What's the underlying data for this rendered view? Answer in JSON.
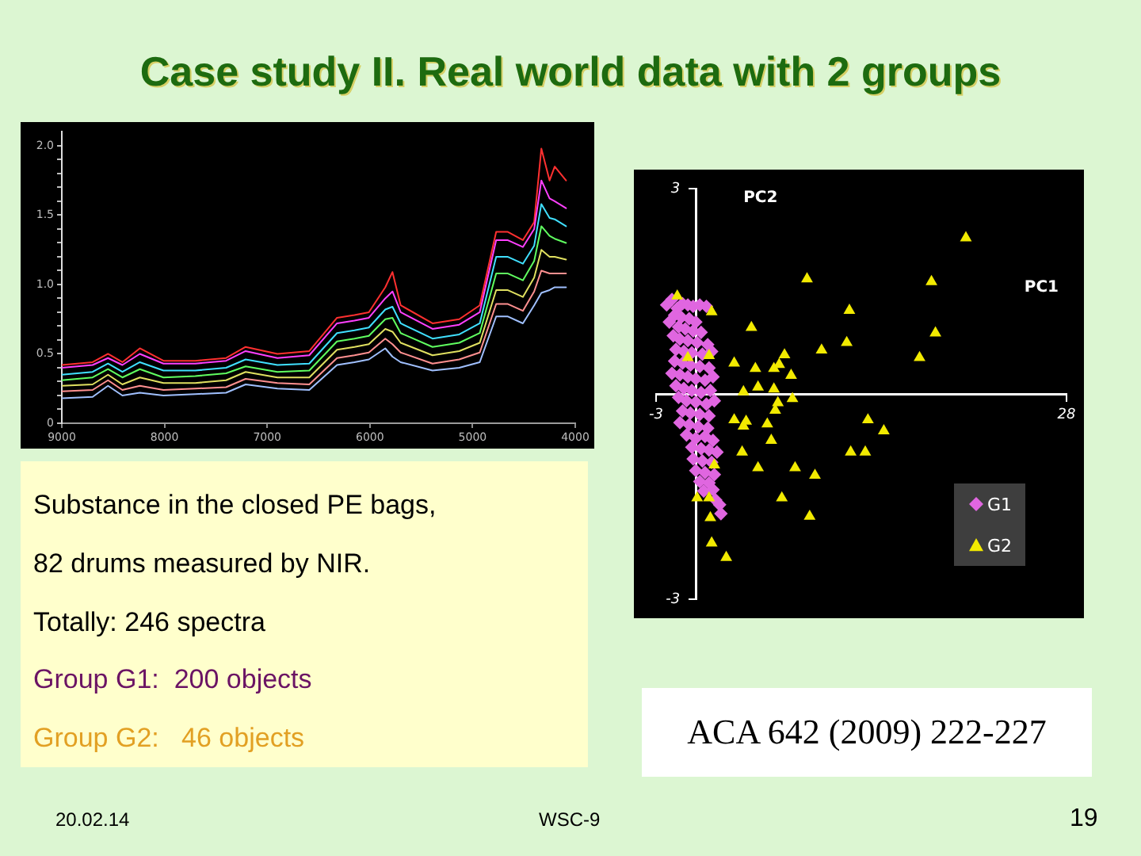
{
  "chart_data": [
    {
      "type": "line",
      "x": [
        9000,
        8700,
        8550,
        8410,
        8240,
        8010,
        7700,
        7400,
        7210,
        6900,
        6590,
        6320,
        6150,
        6010,
        5850,
        5780,
        5700,
        5390,
        5130,
        4930,
        4770,
        4660,
        4510,
        4400,
        4330,
        4250,
        4200,
        4090
      ],
      "series": [
        {
          "color": "#ff3030",
          "values": [
            0.42,
            0.44,
            0.5,
            0.44,
            0.54,
            0.45,
            0.45,
            0.47,
            0.55,
            0.5,
            0.52,
            0.76,
            0.78,
            0.8,
            0.98,
            1.09,
            0.85,
            0.72,
            0.75,
            0.85,
            1.38,
            1.38,
            1.32,
            1.45,
            1.98,
            1.75,
            1.85,
            1.75
          ]
        },
        {
          "color": "#ff40ff",
          "values": [
            0.4,
            0.42,
            0.47,
            0.42,
            0.5,
            0.43,
            0.43,
            0.45,
            0.52,
            0.47,
            0.49,
            0.72,
            0.74,
            0.76,
            0.9,
            0.95,
            0.8,
            0.68,
            0.71,
            0.8,
            1.32,
            1.32,
            1.27,
            1.4,
            1.75,
            1.62,
            1.6,
            1.55
          ]
        },
        {
          "color": "#40e0ff",
          "values": [
            0.35,
            0.37,
            0.43,
            0.37,
            0.44,
            0.38,
            0.38,
            0.4,
            0.46,
            0.42,
            0.43,
            0.65,
            0.67,
            0.69,
            0.82,
            0.84,
            0.72,
            0.61,
            0.64,
            0.72,
            1.2,
            1.2,
            1.15,
            1.28,
            1.58,
            1.48,
            1.47,
            1.42
          ]
        },
        {
          "color": "#60ff60",
          "values": [
            0.31,
            0.33,
            0.39,
            0.33,
            0.39,
            0.33,
            0.34,
            0.36,
            0.41,
            0.37,
            0.38,
            0.59,
            0.61,
            0.63,
            0.75,
            0.76,
            0.65,
            0.55,
            0.58,
            0.65,
            1.08,
            1.08,
            1.03,
            1.17,
            1.42,
            1.35,
            1.33,
            1.3
          ]
        },
        {
          "color": "#e0e060",
          "values": [
            0.27,
            0.28,
            0.35,
            0.28,
            0.33,
            0.29,
            0.29,
            0.31,
            0.37,
            0.33,
            0.33,
            0.53,
            0.55,
            0.57,
            0.68,
            0.66,
            0.58,
            0.49,
            0.52,
            0.58,
            0.96,
            0.96,
            0.91,
            1.05,
            1.25,
            1.2,
            1.2,
            1.18
          ]
        },
        {
          "color": "#ff9090",
          "values": [
            0.23,
            0.24,
            0.31,
            0.24,
            0.27,
            0.24,
            0.25,
            0.26,
            0.32,
            0.29,
            0.28,
            0.47,
            0.49,
            0.51,
            0.61,
            0.57,
            0.51,
            0.43,
            0.46,
            0.51,
            0.86,
            0.86,
            0.81,
            0.95,
            1.1,
            1.08,
            1.08,
            1.08
          ]
        },
        {
          "color": "#a0c0ff",
          "values": [
            0.18,
            0.19,
            0.27,
            0.2,
            0.22,
            0.2,
            0.21,
            0.22,
            0.28,
            0.25,
            0.24,
            0.42,
            0.44,
            0.46,
            0.54,
            0.48,
            0.44,
            0.38,
            0.4,
            0.44,
            0.77,
            0.77,
            0.72,
            0.85,
            0.94,
            0.96,
            0.98,
            0.98
          ]
        }
      ],
      "xlim": [
        9000,
        4000
      ],
      "xticks": [
        9000,
        8000,
        7000,
        6000,
        5000,
        4000
      ],
      "ylim": [
        0,
        2.1
      ],
      "yticks": [
        0,
        {
          "value": 0.1,
          "label": null
        },
        {
          "value": 0.2,
          "label": null
        },
        {
          "value": 0.3,
          "label": null
        },
        {
          "value": 0.4,
          "label": null
        },
        0.5,
        {
          "value": 0.6,
          "label": null
        },
        {
          "value": 0.7,
          "label": null
        },
        {
          "value": 0.8,
          "label": null
        },
        {
          "value": 0.9,
          "label": null
        },
        {
          "value": 1,
          "label": "1.0"
        },
        {
          "value": 1.1,
          "label": null
        },
        {
          "value": 1.2,
          "label": null
        },
        {
          "value": 1.3,
          "label": null
        },
        {
          "value": 1.4,
          "label": null
        },
        1.5,
        {
          "value": 1.6,
          "label": null
        },
        {
          "value": 1.7,
          "label": null
        },
        {
          "value": 1.8,
          "label": null
        },
        {
          "value": 1.9,
          "label": null
        },
        {
          "value": 2,
          "label": "2.0"
        }
      ],
      "marker": "none",
      "line_style": "solid",
      "legend": false
    },
    {
      "type": "scatter",
      "xlabel": "PC1",
      "ylabel": "PC2",
      "xlim": [
        -3,
        28
      ],
      "xticks": [
        -3,
        28
      ],
      "ylim": [
        -3,
        3
      ],
      "yticks": [
        -3,
        3
      ],
      "legend": "bottom right",
      "series": [
        {
          "name": "G1",
          "color": "#e066e0",
          "marker": "diamond",
          "x": [
            -2.2,
            -1.8,
            -1.4,
            -1.0,
            -0.6,
            -0.2,
            0.3,
            0.8,
            -1.6,
            -1.1,
            -0.5,
            0.0,
            -2.0,
            -1.3,
            -0.8,
            -0.2,
            0.4,
            -1.7,
            -1.2,
            -0.6,
            0.1,
            0.9,
            -1.5,
            -0.9,
            -0.3,
            0.5,
            1.2,
            -1.6,
            -1.0,
            -0.4,
            0.3,
            1.0,
            -1.8,
            -1.2,
            -0.6,
            0.0,
            0.7,
            1.3,
            -1.5,
            -0.9,
            -0.3,
            0.4,
            1.1,
            -1.3,
            -0.7,
            0.0,
            0.8,
            1.4,
            -1.0,
            -0.4,
            0.3,
            1.0,
            -1.2,
            -0.5,
            0.2,
            0.9,
            -0.7,
            0.0,
            0.7,
            1.3,
            -0.3,
            0.4,
            1.0,
            1.6,
            -0.2,
            0.5,
            1.2,
            0.0,
            0.7,
            1.4,
            0.3,
            1.0,
            0.6,
            1.3,
            1.5,
            1.8,
            1.9
          ],
          "values": [
            1.3,
            1.38,
            1.25,
            1.32,
            1.3,
            1.28,
            1.3,
            1.28,
            1.15,
            1.12,
            1.1,
            1.05,
            1.05,
            0.98,
            0.95,
            0.92,
            0.9,
            0.85,
            0.8,
            0.78,
            0.75,
            0.72,
            0.65,
            0.62,
            0.6,
            0.58,
            0.62,
            0.48,
            0.45,
            0.42,
            0.4,
            0.38,
            0.3,
            0.28,
            0.25,
            0.22,
            0.2,
            0.25,
            0.12,
            0.08,
            0.05,
            0.02,
            0.05,
            -0.05,
            -0.1,
            -0.12,
            -0.15,
            -0.1,
            -0.25,
            -0.28,
            -0.3,
            -0.32,
            -0.42,
            -0.45,
            -0.48,
            -0.5,
            -0.6,
            -0.65,
            -0.62,
            -0.68,
            -0.78,
            -0.8,
            -0.82,
            -0.85,
            -0.95,
            -0.98,
            -1.0,
            -1.12,
            -1.15,
            -1.18,
            -1.28,
            -1.3,
            -1.42,
            -1.4,
            -1.55,
            -1.62,
            -1.75
          ]
        },
        {
          "name": "G2",
          "color": "#f2ea00",
          "marker": "triangle",
          "x": [
            -1.4,
            1.2,
            8.4,
            11.6,
            4.2,
            9.5,
            11.4,
            6.7,
            2.9,
            -0.6,
            1.0,
            4.5,
            5.9,
            6.3,
            7.2,
            3.6,
            4.7,
            5.9,
            7.3,
            6.2,
            6.0,
            2.9,
            3.6,
            3.8,
            5.4,
            5.7,
            3.5,
            4.7,
            7.5,
            9.0,
            1.4,
            0.1,
            1.0,
            6.5,
            8.6,
            1.1,
            1.2,
            2.3,
            20.4,
            17.8,
            18.1,
            16.9,
            13.0,
            14.2,
            12.8,
            11.7
          ],
          "values": [
            1.43,
            1.2,
            1.68,
            1.22,
            0.97,
            0.64,
            0.75,
            0.57,
            0.45,
            0.53,
            0.56,
            0.37,
            0.37,
            0.43,
            0.27,
            0.03,
            0.1,
            0.07,
            -0.07,
            -0.13,
            -0.24,
            -0.38,
            -0.47,
            -0.4,
            -0.44,
            -0.68,
            -0.85,
            -1.08,
            -1.08,
            -1.19,
            -1.04,
            -1.52,
            -1.52,
            -1.52,
            -1.79,
            -1.81,
            -2.18,
            -2.39,
            2.28,
            1.64,
            0.89,
            0.53,
            -0.38,
            -0.54,
            -0.85,
            -0.85
          ]
        }
      ]
    },
    {
      "type": "other",
      "title": "Case study II. Real world data with 2 groups",
      "annotations": [
        "Substance in the closed PE bags,",
        "82 drums measured by NIR.",
        "Totally: 246 spectra",
        "Group G1:  200 objects",
        "Group G2:   46 objects",
        "ACA 642 (2009) 222-227",
        "20.02.14",
        "WSC-9",
        "19"
      ]
    }
  ]
}
